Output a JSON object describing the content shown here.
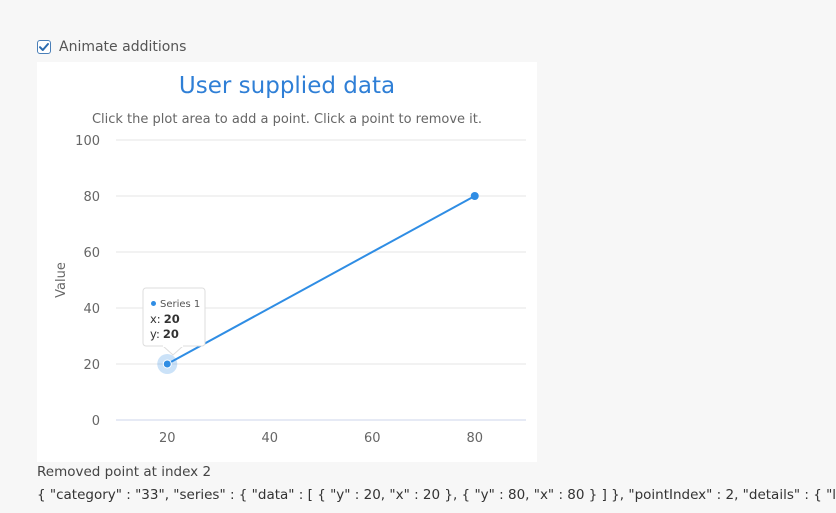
{
  "controls": {
    "animate_label": "Animate additions",
    "animate_checked": true
  },
  "chart_data": {
    "type": "line",
    "title": "User supplied data",
    "subtitle": "Click the plot area to add a point. Click a point to remove it.",
    "xlabel": "",
    "ylabel": "Value",
    "xlim": [
      10,
      90
    ],
    "ylim": [
      0,
      100
    ],
    "x_ticks": [
      20,
      40,
      60,
      80
    ],
    "y_ticks": [
      0,
      20,
      40,
      60,
      80,
      100
    ],
    "grid": true,
    "series": [
      {
        "name": "Series 1",
        "x": [
          20,
          80
        ],
        "y": [
          20,
          80
        ]
      }
    ],
    "tooltip": {
      "series": "Series 1",
      "x_label": "x:",
      "x_value": "20",
      "y_label": "y:",
      "y_value": "20"
    },
    "colors": {
      "series": "#2f8de4",
      "title": "#2f7fd6",
      "grid": "#e6e6e6"
    }
  },
  "log": {
    "status": "Removed point at index 2",
    "json": "{ \"category\" : \"33\", \"series\" : { \"data\" : [ { \"y\" : 20, \"x\" : 20 }, { \"y\" : 80, \"x\" : 80 } ] }, \"pointIndex\" : 2, \"details\" : { \"l"
  }
}
